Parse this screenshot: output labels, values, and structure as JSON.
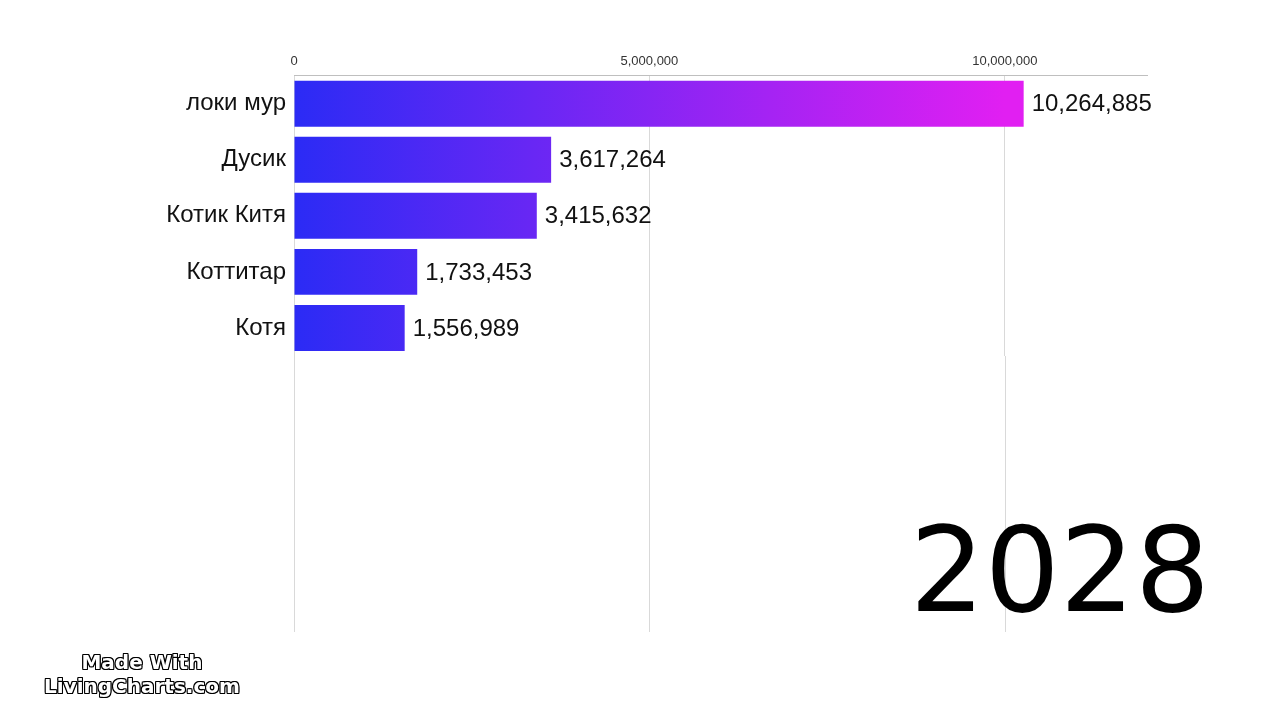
{
  "chart_data": {
    "type": "bar",
    "orientation": "horizontal",
    "categories": [
      "локи мур",
      "Дусик",
      "Котик Китя",
      "Коттитар",
      "Котя"
    ],
    "values": [
      10264885,
      3617264,
      3415632,
      1733453,
      1556989
    ],
    "value_labels": [
      "10,264,885",
      "3,617,264",
      "3,415,632",
      "1,733,453",
      "1,556,989"
    ],
    "color": "#2b2bf5",
    "xlim": [
      0,
      12000000
    ],
    "xticks": [
      0,
      {
        "value": 5000000,
        "label": "5,000,000"
      },
      {
        "value": 10000000,
        "label": "10,000,000"
      }
    ],
    "grid": true,
    "data_labels": true,
    "annotations": [
      "2028",
      "Made With",
      "LivingCharts.com"
    ]
  }
}
